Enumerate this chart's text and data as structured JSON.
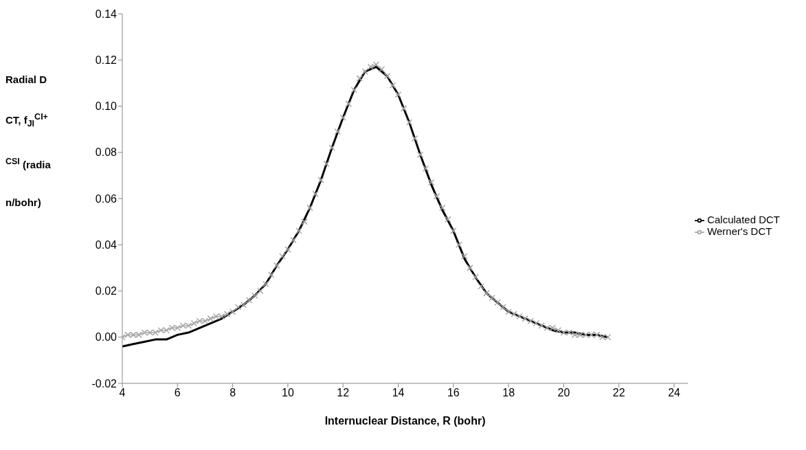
{
  "chart_data": {
    "type": "line",
    "xlabel": "Internuclear Distance, R (bohr)",
    "ylabel": "Radial DCT, f$_{JI}$$^{CI+CSI}$ (radian/bohr)",
    "xlim": [
      4,
      24.5
    ],
    "xticks": [
      4,
      6,
      8,
      10,
      12,
      14,
      16,
      18,
      20,
      22,
      24
    ],
    "ylim": [
      -0.02,
      0.14
    ],
    "yticks": [
      {
        "value": -0.02,
        "label": "-0.02"
      },
      {
        "value": 0,
        "label": "0.00"
      },
      {
        "value": 0.02,
        "label": "0.02"
      },
      {
        "value": 0.04,
        "label": "0.04"
      },
      {
        "value": 0.06,
        "label": "0.06"
      },
      {
        "value": 0.08,
        "label": "0.08"
      },
      {
        "value": 0.1,
        "label": "0.10"
      },
      {
        "value": 0.12,
        "label": "0.12"
      },
      {
        "value": 0.14,
        "label": "0.14"
      }
    ],
    "grid": false,
    "legend": "right",
    "line_style": "solid",
    "series": [
      {
        "name": "Werner's DCT",
        "color": "#a6a6a6",
        "marker": "cross",
        "x": [
          4.0,
          4.2,
          4.4,
          4.6,
          4.8,
          5.0,
          5.2,
          5.4,
          5.6,
          5.8,
          6.0,
          6.2,
          6.4,
          6.6,
          6.8,
          7.0,
          7.2,
          7.4,
          7.6,
          7.8,
          8.0,
          8.2,
          8.4,
          8.6,
          8.8,
          9.0,
          9.2,
          9.4,
          9.6,
          9.8,
          10.0,
          10.2,
          10.4,
          10.6,
          10.8,
          11.0,
          11.2,
          11.4,
          11.6,
          11.8,
          12.0,
          12.2,
          12.4,
          12.6,
          12.8,
          13.0,
          13.2,
          13.4,
          13.6,
          13.8,
          14.0,
          14.2,
          14.4,
          14.6,
          14.8,
          15.0,
          15.2,
          15.4,
          15.6,
          15.8,
          16.0,
          16.2,
          16.4,
          16.6,
          16.8,
          17.0,
          17.2,
          17.4,
          17.6,
          17.8,
          18.0,
          18.2,
          18.4,
          18.6,
          18.8,
          19.0,
          19.2,
          19.4,
          19.6,
          19.8,
          20.0,
          20.2,
          20.4,
          20.6,
          20.8,
          21.0,
          21.2,
          21.4,
          21.6
        ],
        "values": [
          0.0,
          0.001,
          0.001,
          0.001,
          0.002,
          0.002,
          0.002,
          0.003,
          0.003,
          0.004,
          0.004,
          0.005,
          0.005,
          0.006,
          0.007,
          0.007,
          0.008,
          0.009,
          0.009,
          0.01,
          0.011,
          0.013,
          0.014,
          0.016,
          0.018,
          0.02,
          0.023,
          0.027,
          0.031,
          0.035,
          0.038,
          0.042,
          0.046,
          0.05,
          0.056,
          0.062,
          0.068,
          0.075,
          0.082,
          0.089,
          0.095,
          0.101,
          0.107,
          0.112,
          0.115,
          0.117,
          0.118,
          0.116,
          0.113,
          0.109,
          0.105,
          0.099,
          0.093,
          0.086,
          0.079,
          0.073,
          0.067,
          0.061,
          0.056,
          0.051,
          0.046,
          0.04,
          0.035,
          0.03,
          0.026,
          0.022,
          0.019,
          0.017,
          0.015,
          0.013,
          0.011,
          0.01,
          0.009,
          0.008,
          0.007,
          0.006,
          0.005,
          0.004,
          0.004,
          0.003,
          0.002,
          0.002,
          0.001,
          0.001,
          0.001,
          0.001,
          0.001,
          0.0,
          0.0
        ]
      },
      {
        "name": "Calculated DCT",
        "color": "#000000",
        "marker": "none",
        "x": [
          4.0,
          4.4,
          4.8,
          5.2,
          5.6,
          6.0,
          6.4,
          6.8,
          7.2,
          7.6,
          8.0,
          8.4,
          8.8,
          9.2,
          9.6,
          10.0,
          10.4,
          10.8,
          11.2,
          11.6,
          12.0,
          12.4,
          12.8,
          13.2,
          13.6,
          14.0,
          14.4,
          14.8,
          15.2,
          15.6,
          16.0,
          16.4,
          16.8,
          17.2,
          17.6,
          18.0,
          18.4,
          18.8,
          19.2,
          19.6,
          20.0,
          20.4,
          20.8,
          21.2,
          21.6
        ],
        "values": [
          -0.004,
          -0.003,
          -0.002,
          -0.001,
          -0.001,
          0.001,
          0.002,
          0.004,
          0.006,
          0.008,
          0.011,
          0.014,
          0.018,
          0.023,
          0.031,
          0.038,
          0.046,
          0.056,
          0.068,
          0.082,
          0.095,
          0.107,
          0.115,
          0.117,
          0.113,
          0.105,
          0.093,
          0.079,
          0.066,
          0.055,
          0.046,
          0.034,
          0.026,
          0.019,
          0.015,
          0.011,
          0.009,
          0.007,
          0.005,
          0.003,
          0.002,
          0.002,
          0.001,
          0.001,
          0.0
        ]
      }
    ]
  }
}
